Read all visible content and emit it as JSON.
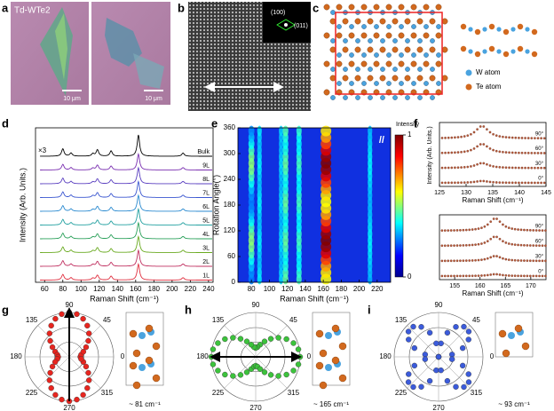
{
  "panel_labels": [
    "a",
    "b",
    "c",
    "d",
    "e",
    "f",
    "g",
    "h",
    "i"
  ],
  "a": {
    "title": "Td-WTe2",
    "scale_bars": [
      "10 μm",
      "10 μm"
    ]
  },
  "b": {
    "inset_labels": [
      "(100)",
      "(011)"
    ]
  },
  "c": {
    "legend": [
      "W atom",
      "Te atom"
    ],
    "colors": [
      "#4aa3df",
      "#d2691e"
    ]
  },
  "d": {
    "multiplier": "×3",
    "layers": [
      "Bulk",
      "9L",
      "8L",
      "7L",
      "6L",
      "5L",
      "4L",
      "3L",
      "2L",
      "1L"
    ],
    "colors": [
      "#000000",
      "#7a2fb0",
      "#5a3fc0",
      "#3a56d0",
      "#2a8ad0",
      "#22a0a0",
      "#2aa05a",
      "#6aaa20",
      "#c03060",
      "#e03040"
    ],
    "ylabel": "Intensity (Arb. Units.)",
    "xlabel": "Raman Shift (cm⁻¹)",
    "xlim": [
      50,
      245
    ],
    "xticks": [
      60,
      80,
      100,
      120,
      140,
      160,
      180,
      200,
      220,
      240
    ],
    "peaks": [
      80,
      89,
      113,
      118,
      133,
      163,
      212
    ],
    "peak_heights": [
      0.35,
      0.15,
      0.12,
      0.3,
      0.25,
      1,
      0.15
    ]
  },
  "e": {
    "ylabel": "Rotation Angle(°)",
    "xlabel": "Raman Shift (cm⁻¹)",
    "xlim": [
      65,
      235
    ],
    "ylim": [
      0,
      360
    ],
    "xticks": [
      80,
      100,
      120,
      140,
      160,
      180,
      200,
      220
    ],
    "yticks": [
      0,
      60,
      120,
      180,
      240,
      300,
      360
    ],
    "colorbar_title": "Intensity",
    "colorbar_ticks": [
      0,
      1
    ],
    "break_mark": "//"
  },
  "f": {
    "ylabel": "Intensity (Arb. Units.)",
    "xlabel": "Raman Shift (cm⁻¹)",
    "top": {
      "xlim": [
        125,
        145
      ],
      "xticks": [
        125,
        130,
        135,
        140,
        145
      ],
      "peak": 133,
      "angles": [
        "90°",
        "60°",
        "30°",
        "0°"
      ]
    },
    "bottom": {
      "xlim": [
        152,
        173
      ],
      "xticks": [
        155,
        160,
        165,
        170
      ],
      "peak": 163,
      "angles": [
        "90°",
        "60°",
        "30°",
        "0°"
      ]
    }
  },
  "polar": {
    "ticks": [
      90,
      45,
      0,
      315,
      270,
      225,
      180,
      135
    ],
    "modes": [
      "~ 81 cm⁻¹",
      "~ 165 cm⁻¹",
      "~ 93 cm⁻¹"
    ],
    "colors": [
      "#e8251f",
      "#3cc33c",
      "#3b5bdb"
    ]
  }
}
